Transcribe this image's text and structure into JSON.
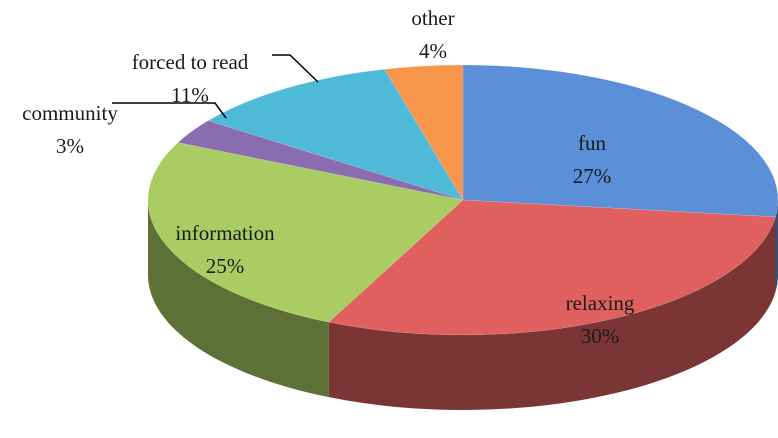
{
  "chart_data": {
    "type": "pie",
    "categories": [
      "fun",
      "relaxing",
      "information",
      "community",
      "forced to read",
      "other"
    ],
    "values": [
      27,
      30,
      25,
      3,
      11,
      4
    ],
    "value_labels": [
      "27%",
      "30%",
      "25%",
      "3%",
      "11%",
      "4%"
    ],
    "colors": [
      "#5b8fd8",
      "#e0605f",
      "#a9cd63",
      "#8a6cb0",
      "#4fb9d8",
      "#f7964a"
    ]
  }
}
